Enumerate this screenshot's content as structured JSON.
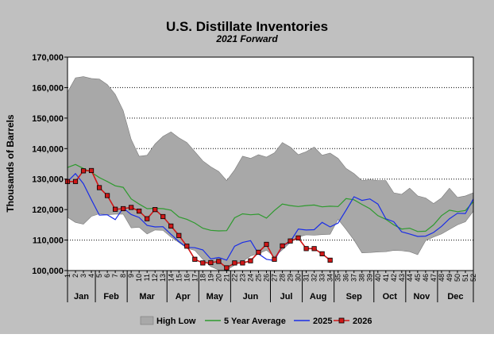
{
  "chart_data": {
    "type": "area",
    "title": "U.S. Distillate Inventories",
    "subtitle": "2021 Forward",
    "ylabel": "Thousands of Barrels",
    "xlabel": "",
    "ylim": [
      100000,
      170000
    ],
    "xlim": [
      1,
      52
    ],
    "y_ticks": [
      100000,
      110000,
      120000,
      130000,
      140000,
      150000,
      160000,
      170000
    ],
    "y_tick_labels": [
      "100,000",
      "110,000",
      "120,000",
      "130,000",
      "140,000",
      "150,000",
      "160,000",
      "170,000"
    ],
    "x_ticks": [
      1,
      2,
      3,
      4,
      5,
      6,
      7,
      8,
      9,
      10,
      11,
      12,
      13,
      14,
      15,
      16,
      17,
      18,
      19,
      20,
      21,
      22,
      23,
      24,
      25,
      26,
      27,
      28,
      29,
      30,
      31,
      32,
      33,
      34,
      35,
      36,
      37,
      38,
      39,
      40,
      41,
      42,
      43,
      44,
      45,
      46,
      47,
      48,
      49,
      50,
      51,
      52
    ],
    "x_tick_labels": [
      "1",
      "2",
      "3",
      "4",
      "5",
      "6",
      "7",
      "8",
      "9",
      "10",
      "11",
      "12",
      "13",
      "14",
      "15",
      "16",
      "17",
      "18",
      "19",
      "20",
      "21",
      "22",
      "23",
      "24",
      "25",
      "26",
      "27",
      "28",
      "29",
      "30",
      "31",
      "32",
      "33",
      "34",
      "35",
      "36",
      "37",
      "38",
      "39",
      "40",
      "41",
      "42",
      "43",
      "44",
      "45",
      "46",
      "47",
      "48",
      "49",
      "50",
      "51",
      "52"
    ],
    "months": [
      {
        "label": "Jan",
        "start": 1,
        "end": 4
      },
      {
        "label": "Feb",
        "start": 5,
        "end": 8
      },
      {
        "label": "Mar",
        "start": 9,
        "end": 13
      },
      {
        "label": "Apr",
        "start": 14,
        "end": 17
      },
      {
        "label": "May",
        "start": 18,
        "end": 21
      },
      {
        "label": "Jun",
        "start": 22,
        "end": 26
      },
      {
        "label": "Jul",
        "start": 27,
        "end": 30
      },
      {
        "label": "Aug",
        "start": 31,
        "end": 34
      },
      {
        "label": "Sep",
        "start": 35,
        "end": 39
      },
      {
        "label": "Oct",
        "start": 40,
        "end": 43
      },
      {
        "label": "Nov",
        "start": 44,
        "end": 47
      },
      {
        "label": "Dec",
        "start": 48,
        "end": 52
      }
    ],
    "grid": true,
    "legend_position": "bottom",
    "colors": {
      "band": "#a8a8a8",
      "avg": "#2e9a2e",
      "y2025": "#1a2ee6",
      "y2026": "#d01818",
      "y2026_marker": "#a31515",
      "plot_bg": "#ffffff",
      "frame_bg": "#c0c0c0"
    },
    "series": [
      {
        "name": "High Low",
        "type": "band",
        "x": [
          1,
          2,
          3,
          4,
          5,
          6,
          7,
          8,
          9,
          10,
          11,
          12,
          13,
          14,
          15,
          16,
          17,
          18,
          19,
          20,
          21,
          22,
          23,
          24,
          25,
          26,
          27,
          28,
          29,
          30,
          31,
          32,
          33,
          34,
          35,
          36,
          37,
          38,
          39,
          40,
          41,
          42,
          43,
          44,
          45,
          46,
          47,
          48,
          49,
          50,
          51,
          52
        ],
        "high": [
          158500,
          163200,
          163600,
          163000,
          162800,
          161000,
          157800,
          152500,
          143000,
          137500,
          137800,
          141500,
          144000,
          145500,
          143500,
          142000,
          139000,
          136000,
          134000,
          132500,
          129500,
          133000,
          137500,
          136800,
          138000,
          137200,
          138600,
          142000,
          140500,
          138000,
          139000,
          140500,
          137800,
          138500,
          136800,
          133500,
          131800,
          129500,
          129800,
          129500,
          129500,
          125500,
          125000,
          127000,
          124500,
          123800,
          122000,
          123800,
          127000,
          124000,
          124500,
          125500
        ],
        "low": [
          117500,
          115800,
          115200,
          117800,
          118600,
          118300,
          118500,
          118500,
          114000,
          114200,
          112000,
          113300,
          113200,
          111000,
          109200,
          107300,
          106600,
          103700,
          101300,
          100200,
          100100,
          101800,
          103000,
          104800,
          105500,
          106700,
          104500,
          106800,
          109200,
          111000,
          111700,
          111600,
          111800,
          111900,
          116800,
          113500,
          110000,
          105800,
          105900,
          106100,
          106200,
          106600,
          106500,
          106200,
          105200,
          109800,
          111000,
          112000,
          113500,
          115000,
          116000,
          119500
        ]
      },
      {
        "name": "5 Year Average",
        "type": "line",
        "x": [
          1,
          2,
          3,
          4,
          5,
          6,
          7,
          8,
          9,
          10,
          11,
          12,
          13,
          14,
          15,
          16,
          17,
          18,
          19,
          20,
          21,
          22,
          23,
          24,
          25,
          26,
          27,
          28,
          29,
          30,
          31,
          32,
          33,
          34,
          35,
          36,
          37,
          38,
          39,
          40,
          41,
          42,
          43,
          44,
          45,
          46,
          47,
          48,
          49,
          50,
          51,
          52
        ],
        "y": [
          133800,
          134800,
          133500,
          132200,
          130500,
          129200,
          127800,
          127300,
          123500,
          121800,
          120300,
          120400,
          120300,
          119800,
          117600,
          116800,
          115600,
          113900,
          113200,
          113000,
          113100,
          117300,
          118600,
          118300,
          118500,
          117200,
          119700,
          121800,
          121300,
          121000,
          121300,
          121500,
          120900,
          121100,
          121000,
          123600,
          123200,
          121700,
          120300,
          118000,
          116800,
          115000,
          113600,
          113900,
          112800,
          112900,
          115000,
          118000,
          119800,
          119300,
          119700,
          122600
        ]
      },
      {
        "name": "2025",
        "type": "line",
        "x": [
          1,
          2,
          3,
          4,
          5,
          6,
          7,
          8,
          9,
          10,
          11,
          12,
          13,
          14,
          15,
          16,
          17,
          18,
          19,
          20,
          21,
          22,
          23,
          24,
          25,
          26,
          27,
          28,
          29,
          30,
          31,
          32,
          33,
          34,
          35,
          36,
          37,
          38,
          39,
          40,
          41,
          42,
          43,
          44,
          45,
          46,
          47,
          48,
          49,
          50,
          51,
          52
        ],
        "y": [
          129200,
          131800,
          128500,
          123200,
          118200,
          118300,
          116700,
          120500,
          118400,
          117400,
          114800,
          114300,
          114400,
          111900,
          109500,
          107600,
          107500,
          106800,
          103800,
          104300,
          103400,
          108000,
          109200,
          109800,
          105500,
          103700,
          103300,
          108000,
          109500,
          113600,
          113300,
          113400,
          115800,
          114300,
          115600,
          119800,
          124200,
          123000,
          123500,
          121800,
          117000,
          116000,
          112700,
          112000,
          111200,
          111300,
          112500,
          114500,
          117000,
          118800,
          118700,
          123500
        ]
      },
      {
        "name": "2026",
        "type": "line_markers",
        "x": [
          1,
          2,
          3,
          4,
          5,
          6,
          7,
          8,
          9,
          10,
          11,
          12,
          13,
          14,
          15,
          16,
          17,
          18,
          19,
          20,
          21,
          22,
          23,
          24,
          25,
          26,
          27,
          28,
          29,
          30,
          31,
          32,
          33,
          34
        ],
        "y": [
          129200,
          129200,
          132700,
          132800,
          127200,
          124600,
          120100,
          120300,
          120700,
          119500,
          117000,
          120000,
          117700,
          114600,
          111500,
          108000,
          103700,
          102500,
          102600,
          103000,
          100900,
          102500,
          102500,
          103200,
          106000,
          108600,
          103700,
          108100,
          109700,
          110700,
          107200,
          107200,
          105500,
          103400
        ]
      }
    ]
  }
}
